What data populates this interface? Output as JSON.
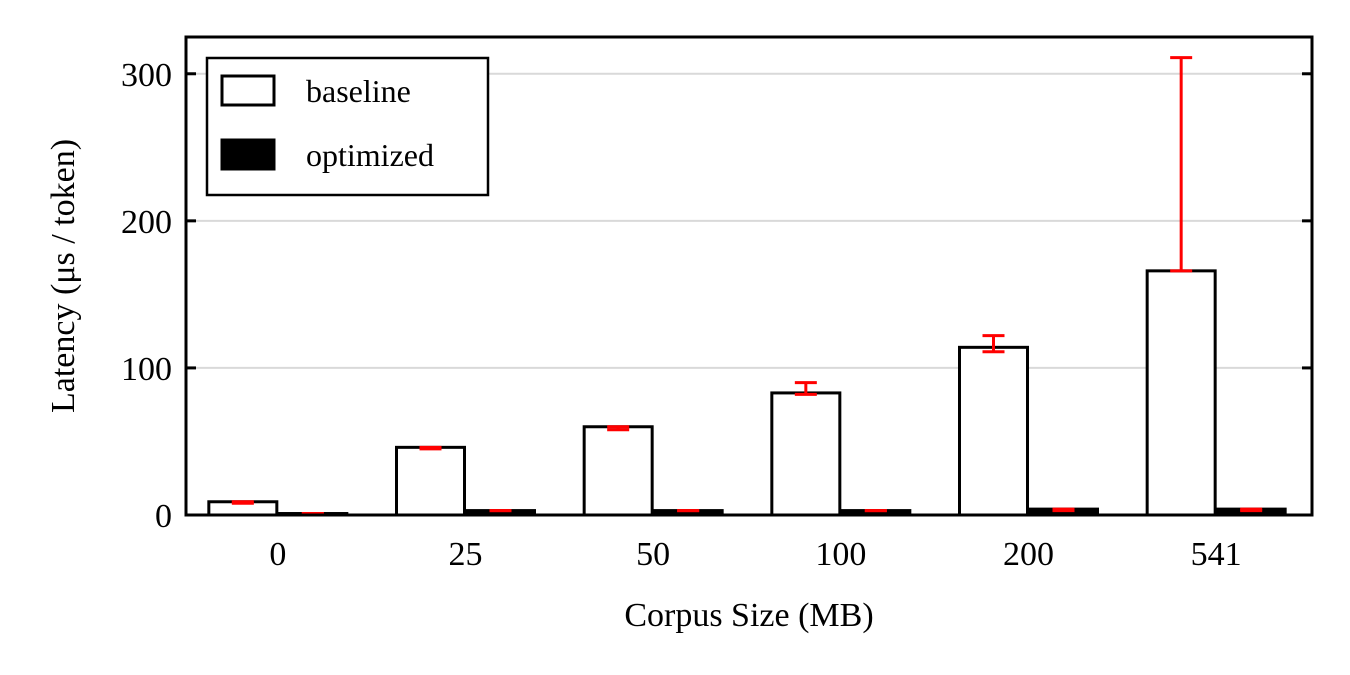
{
  "chart_data": {
    "type": "bar",
    "title": "",
    "xlabel": "Corpus Size (MB)",
    "ylabel": "Latency (μs / token)",
    "categories": [
      "0",
      "25",
      "50",
      "100",
      "200",
      "541"
    ],
    "ylim": [
      0,
      325
    ],
    "yticks": [
      0,
      100,
      200,
      300
    ],
    "grid": "horizontal",
    "legend": "top-left",
    "series": [
      {
        "name": "baseline",
        "style": "hollow",
        "fill": "#ffffff",
        "stroke": "#000000",
        "values": [
          9,
          46,
          60,
          83,
          114,
          166
        ],
        "error_low": [
          8,
          45,
          58,
          82,
          111,
          166
        ],
        "error_high": [
          9,
          46,
          60,
          90,
          122,
          311
        ]
      },
      {
        "name": "optimized",
        "style": "solid",
        "fill": "#000000",
        "stroke": "#000000",
        "values": [
          1,
          3,
          3,
          3,
          4,
          4
        ],
        "error_low": [
          1,
          3,
          3,
          3,
          3,
          3
        ],
        "error_high": [
          1,
          3,
          3,
          3,
          4,
          4
        ]
      }
    ],
    "error_bar_color": "#ff0000",
    "grid_color": "#d9d9d9"
  }
}
